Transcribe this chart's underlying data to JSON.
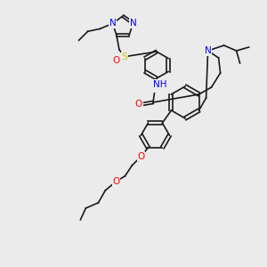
{
  "bg_color": "#ebebeb",
  "bond_color": "#1a1a1a",
  "atom_colors": {
    "N": "#0000ff",
    "O": "#ff0000",
    "S": "#cccc00",
    "C": "#1a1a1a"
  },
  "bond_width": 1.2,
  "font_size": 7.5
}
